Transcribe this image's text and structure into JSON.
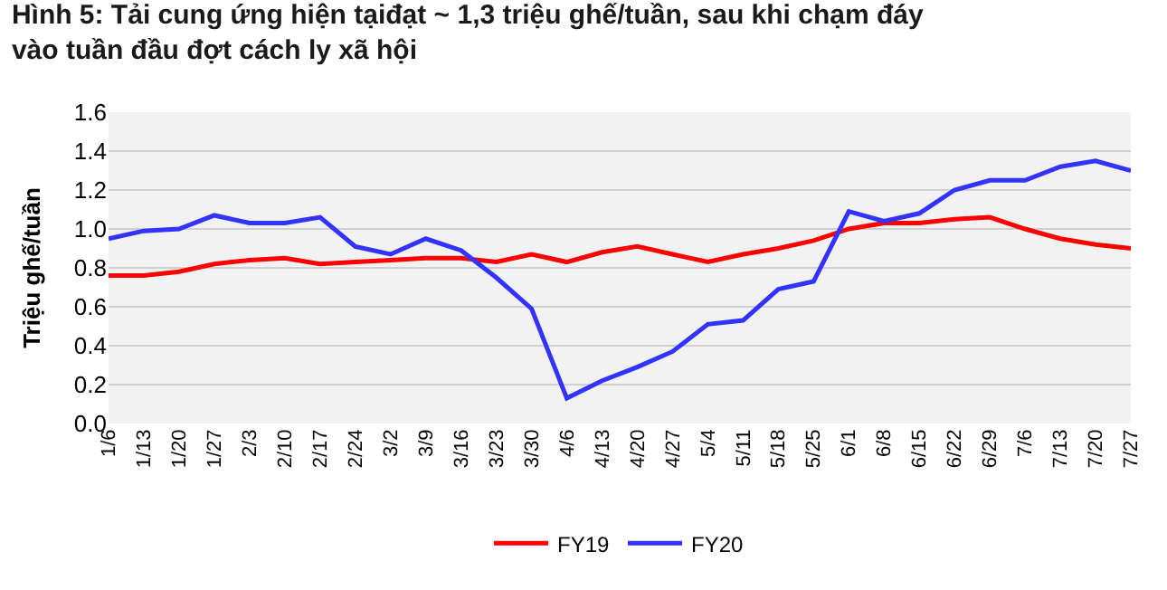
{
  "chart_data": {
    "type": "line",
    "title": "Hình 5: Tải cung ứng hiện tạiđạt ~ 1,3 triệu ghế/tuần, sau khi chạm đáy\nvào tuần đầu đợt cách ly xã hội",
    "ylabel": "Triệu ghế/tuần",
    "categories": [
      "1/6",
      "1/13",
      "1/20",
      "1/27",
      "2/3",
      "2/10",
      "2/17",
      "2/24",
      "3/2",
      "3/9",
      "3/16",
      "3/23",
      "3/30",
      "4/6",
      "4/13",
      "4/20",
      "4/27",
      "5/4",
      "5/11",
      "5/18",
      "5/25",
      "6/1",
      "6/8",
      "6/15",
      "6/22",
      "6/29",
      "7/6",
      "7/13",
      "7/20",
      "7/27"
    ],
    "series": [
      {
        "name": "FY19",
        "color": "#ff0000",
        "values": [
          0.76,
          0.76,
          0.78,
          0.82,
          0.84,
          0.85,
          0.82,
          0.83,
          0.84,
          0.85,
          0.85,
          0.83,
          0.87,
          0.83,
          0.88,
          0.91,
          0.87,
          0.83,
          0.87,
          0.9,
          0.94,
          1.0,
          1.03,
          1.03,
          1.05,
          1.06,
          1.0,
          0.95,
          0.92,
          0.9
        ]
      },
      {
        "name": "FY20",
        "color": "#3333ff",
        "values": [
          0.95,
          0.99,
          1.0,
          1.07,
          1.03,
          1.03,
          1.06,
          0.91,
          0.87,
          0.95,
          0.89,
          0.75,
          0.59,
          0.13,
          0.22,
          0.29,
          0.37,
          0.51,
          0.53,
          0.69,
          0.73,
          1.09,
          1.04,
          1.08,
          1.2,
          1.25,
          1.25,
          1.32,
          1.35,
          1.3
        ]
      }
    ],
    "ylim": [
      0,
      1.6
    ],
    "yticks": [
      {
        "value": 0,
        "label": "0.0"
      },
      {
        "value": 0.2,
        "label": "0.2"
      },
      {
        "value": 0.4,
        "label": "0.4"
      },
      {
        "value": 0.6,
        "label": "0.6"
      },
      {
        "value": 0.8,
        "label": "0.8"
      },
      {
        "value": 1.0,
        "label": "1.0"
      },
      {
        "value": 1.2,
        "label": "1.2"
      },
      {
        "value": 1.4,
        "label": "1.4"
      },
      {
        "value": 1.6,
        "label": "1.6"
      }
    ],
    "grid": "y",
    "legend": "bottom",
    "marker": "none",
    "line_style": "solid"
  }
}
